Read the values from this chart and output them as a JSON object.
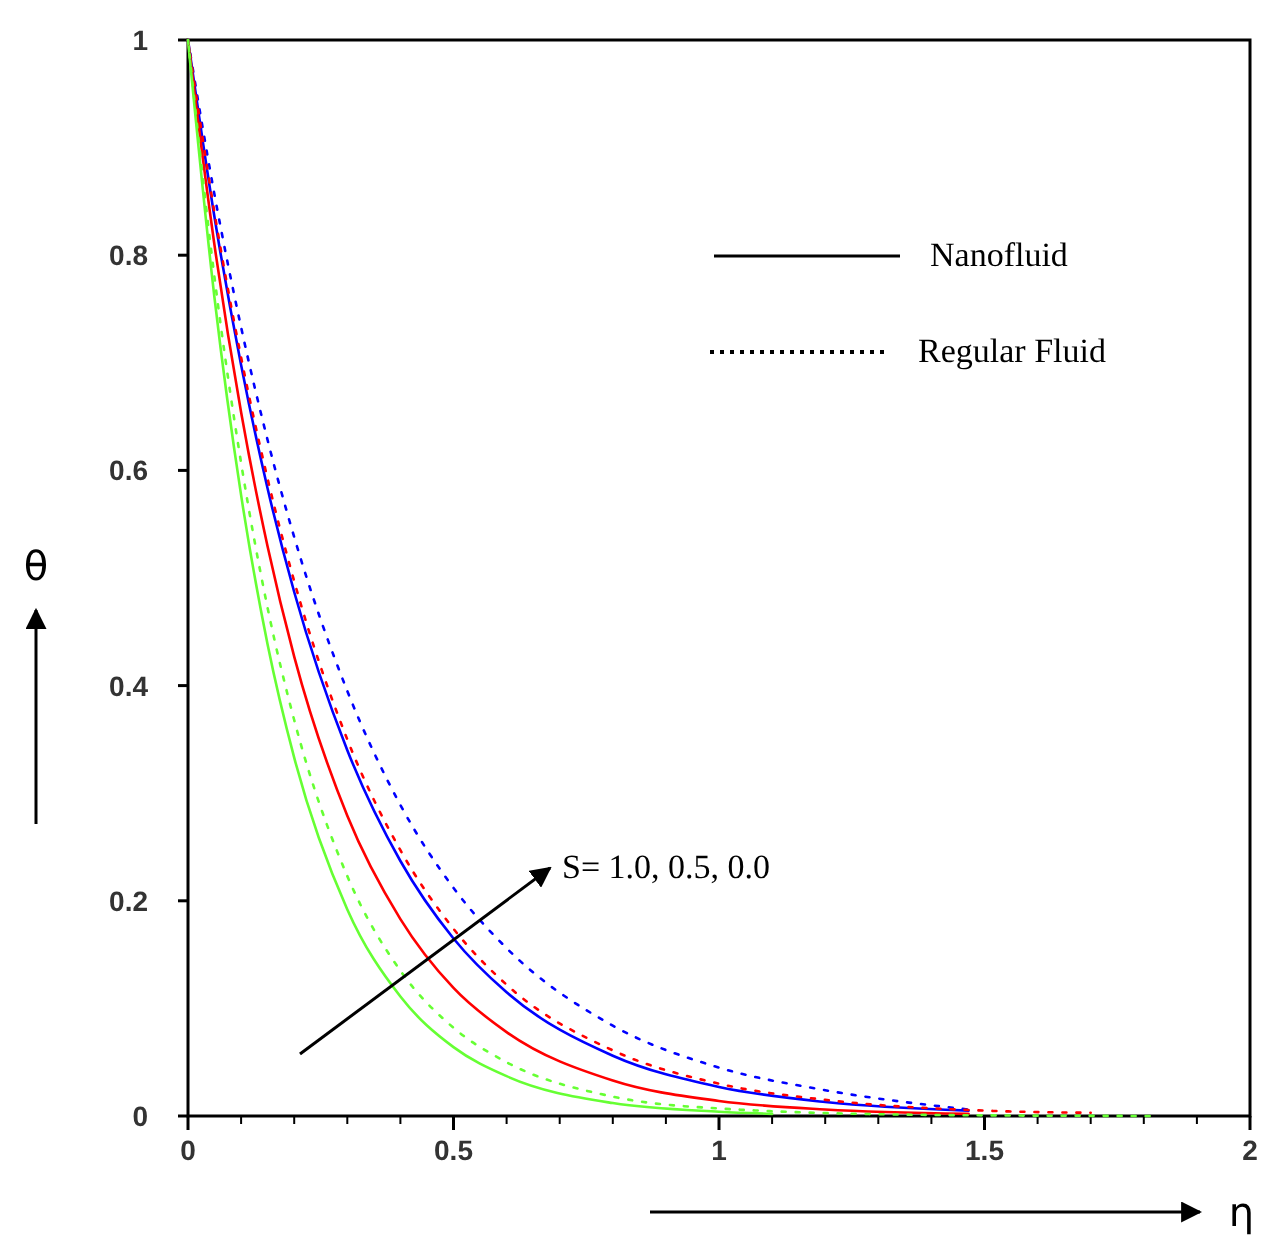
{
  "chart_data": {
    "type": "line",
    "xlabel": "η",
    "ylabel": "θ",
    "xlim": [
      0,
      2
    ],
    "ylim": [
      0,
      1
    ],
    "xticks": [
      0,
      0.5,
      1,
      1.5,
      2
    ],
    "yticks": [
      0,
      0.2,
      0.4,
      0.6,
      0.8,
      1
    ],
    "grid": false,
    "annotations": [
      "S= 1.0, 0.5, 0.0",
      "Nanofluid",
      "Regular Fluid"
    ],
    "series": [
      {
        "color": "#0000ff",
        "line_style": "solid",
        "x": [
          0,
          0.05,
          0.1,
          0.15,
          0.2,
          0.3,
          0.4,
          0.5,
          0.6,
          0.8,
          1.0,
          1.2,
          1.47
        ],
        "values": [
          1,
          0.835,
          0.698,
          0.583,
          0.487,
          0.34,
          0.237,
          0.165,
          0.115,
          0.056,
          0.027,
          0.013,
          0.005
        ]
      },
      {
        "color": "#ff0000",
        "line_style": "solid",
        "x": [
          0,
          0.05,
          0.1,
          0.15,
          0.2,
          0.3,
          0.4,
          0.5,
          0.6,
          0.8,
          1.0,
          1.2,
          1.47
        ],
        "values": [
          1,
          0.809,
          0.654,
          0.529,
          0.427,
          0.279,
          0.183,
          0.119,
          0.078,
          0.033,
          0.014,
          0.006,
          0.002
        ]
      },
      {
        "color": "#66ff33",
        "line_style": "solid",
        "x": [
          0,
          0.05,
          0.1,
          0.15,
          0.2,
          0.3,
          0.4,
          0.5,
          0.6,
          0.8,
          1.0,
          1.1
        ],
        "values": [
          1,
          0.76,
          0.577,
          0.438,
          0.333,
          0.192,
          0.111,
          0.064,
          0.037,
          0.012,
          0.004,
          0.002
        ]
      },
      {
        "color": "#0000ff",
        "line_style": "dotted",
        "x": [
          0,
          0.05,
          0.1,
          0.15,
          0.2,
          0.3,
          0.4,
          0.5,
          0.6,
          0.8,
          1.0,
          1.2,
          1.47
        ],
        "values": [
          1,
          0.856,
          0.733,
          0.628,
          0.538,
          0.395,
          0.289,
          0.212,
          0.156,
          0.084,
          0.045,
          0.024,
          0.006
        ]
      },
      {
        "color": "#ff0000",
        "line_style": "dotted",
        "x": [
          0,
          0.05,
          0.1,
          0.15,
          0.2,
          0.3,
          0.4,
          0.5,
          0.6,
          0.8,
          1.0,
          1.2,
          1.5,
          1.7
        ],
        "values": [
          1,
          0.839,
          0.705,
          0.592,
          0.497,
          0.35,
          0.247,
          0.174,
          0.122,
          0.061,
          0.03,
          0.015,
          0.005,
          0.003
        ]
      },
      {
        "color": "#66ff33",
        "line_style": "dotted",
        "x": [
          0,
          0.05,
          0.1,
          0.15,
          0.2,
          0.3,
          0.4,
          0.5,
          0.6,
          0.8,
          1.0,
          1.4,
          1.82
        ],
        "values": [
          1,
          0.779,
          0.607,
          0.472,
          0.368,
          0.223,
          0.135,
          0.082,
          0.05,
          0.018,
          0.007,
          0.001,
          0
        ]
      }
    ]
  }
}
